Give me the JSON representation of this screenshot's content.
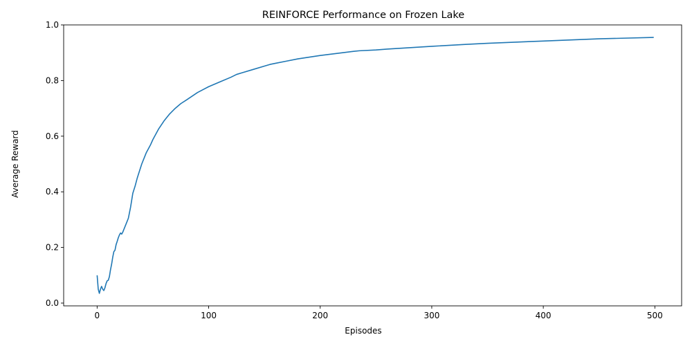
{
  "chart_data": {
    "type": "line",
    "title": "REINFORCE Performance on Frozen Lake",
    "xlabel": "Episodes",
    "ylabel": "Average Reward",
    "xlim": [
      -30,
      524
    ],
    "ylim": [
      -0.01,
      1.0
    ],
    "xticks": [
      0,
      100,
      200,
      300,
      400,
      500
    ],
    "yticks": [
      0.0,
      0.2,
      0.4,
      0.6,
      0.8,
      1.0
    ],
    "xtick_labels": [
      "0",
      "100",
      "200",
      "300",
      "400",
      "500"
    ],
    "ytick_labels": [
      "0.0",
      "0.2",
      "0.4",
      "0.6",
      "0.8",
      "1.0"
    ],
    "grid": false,
    "legend": null,
    "series": [
      {
        "color": "#1f77b4",
        "x": [
          0,
          1,
          2,
          3,
          4,
          5,
          6,
          7,
          8,
          9,
          10,
          11,
          12,
          13,
          14,
          15,
          16,
          17,
          18,
          19,
          20,
          21,
          22,
          23,
          24,
          25,
          26,
          27,
          28,
          29,
          30,
          32,
          34,
          36,
          38,
          40,
          42,
          44,
          46,
          48,
          50,
          55,
          60,
          65,
          70,
          75,
          80,
          90,
          100,
          110,
          120,
          125,
          130,
          140,
          150,
          155,
          160,
          170,
          180,
          200,
          220,
          230,
          235,
          250,
          260,
          280,
          300,
          330,
          350,
          400,
          450,
          499
        ],
        "y": [
          0.1,
          0.05,
          0.035,
          0.05,
          0.06,
          0.05,
          0.045,
          0.055,
          0.07,
          0.08,
          0.082,
          0.095,
          0.12,
          0.14,
          0.165,
          0.185,
          0.19,
          0.21,
          0.222,
          0.235,
          0.245,
          0.252,
          0.248,
          0.255,
          0.265,
          0.275,
          0.285,
          0.295,
          0.305,
          0.325,
          0.345,
          0.395,
          0.42,
          0.45,
          0.475,
          0.5,
          0.52,
          0.54,
          0.555,
          0.57,
          0.588,
          0.625,
          0.655,
          0.68,
          0.7,
          0.717,
          0.73,
          0.757,
          0.778,
          0.795,
          0.812,
          0.822,
          0.828,
          0.84,
          0.852,
          0.858,
          0.862,
          0.87,
          0.878,
          0.89,
          0.9,
          0.905,
          0.907,
          0.91,
          0.913,
          0.918,
          0.923,
          0.93,
          0.934,
          0.942,
          0.95,
          0.955
        ]
      }
    ]
  }
}
